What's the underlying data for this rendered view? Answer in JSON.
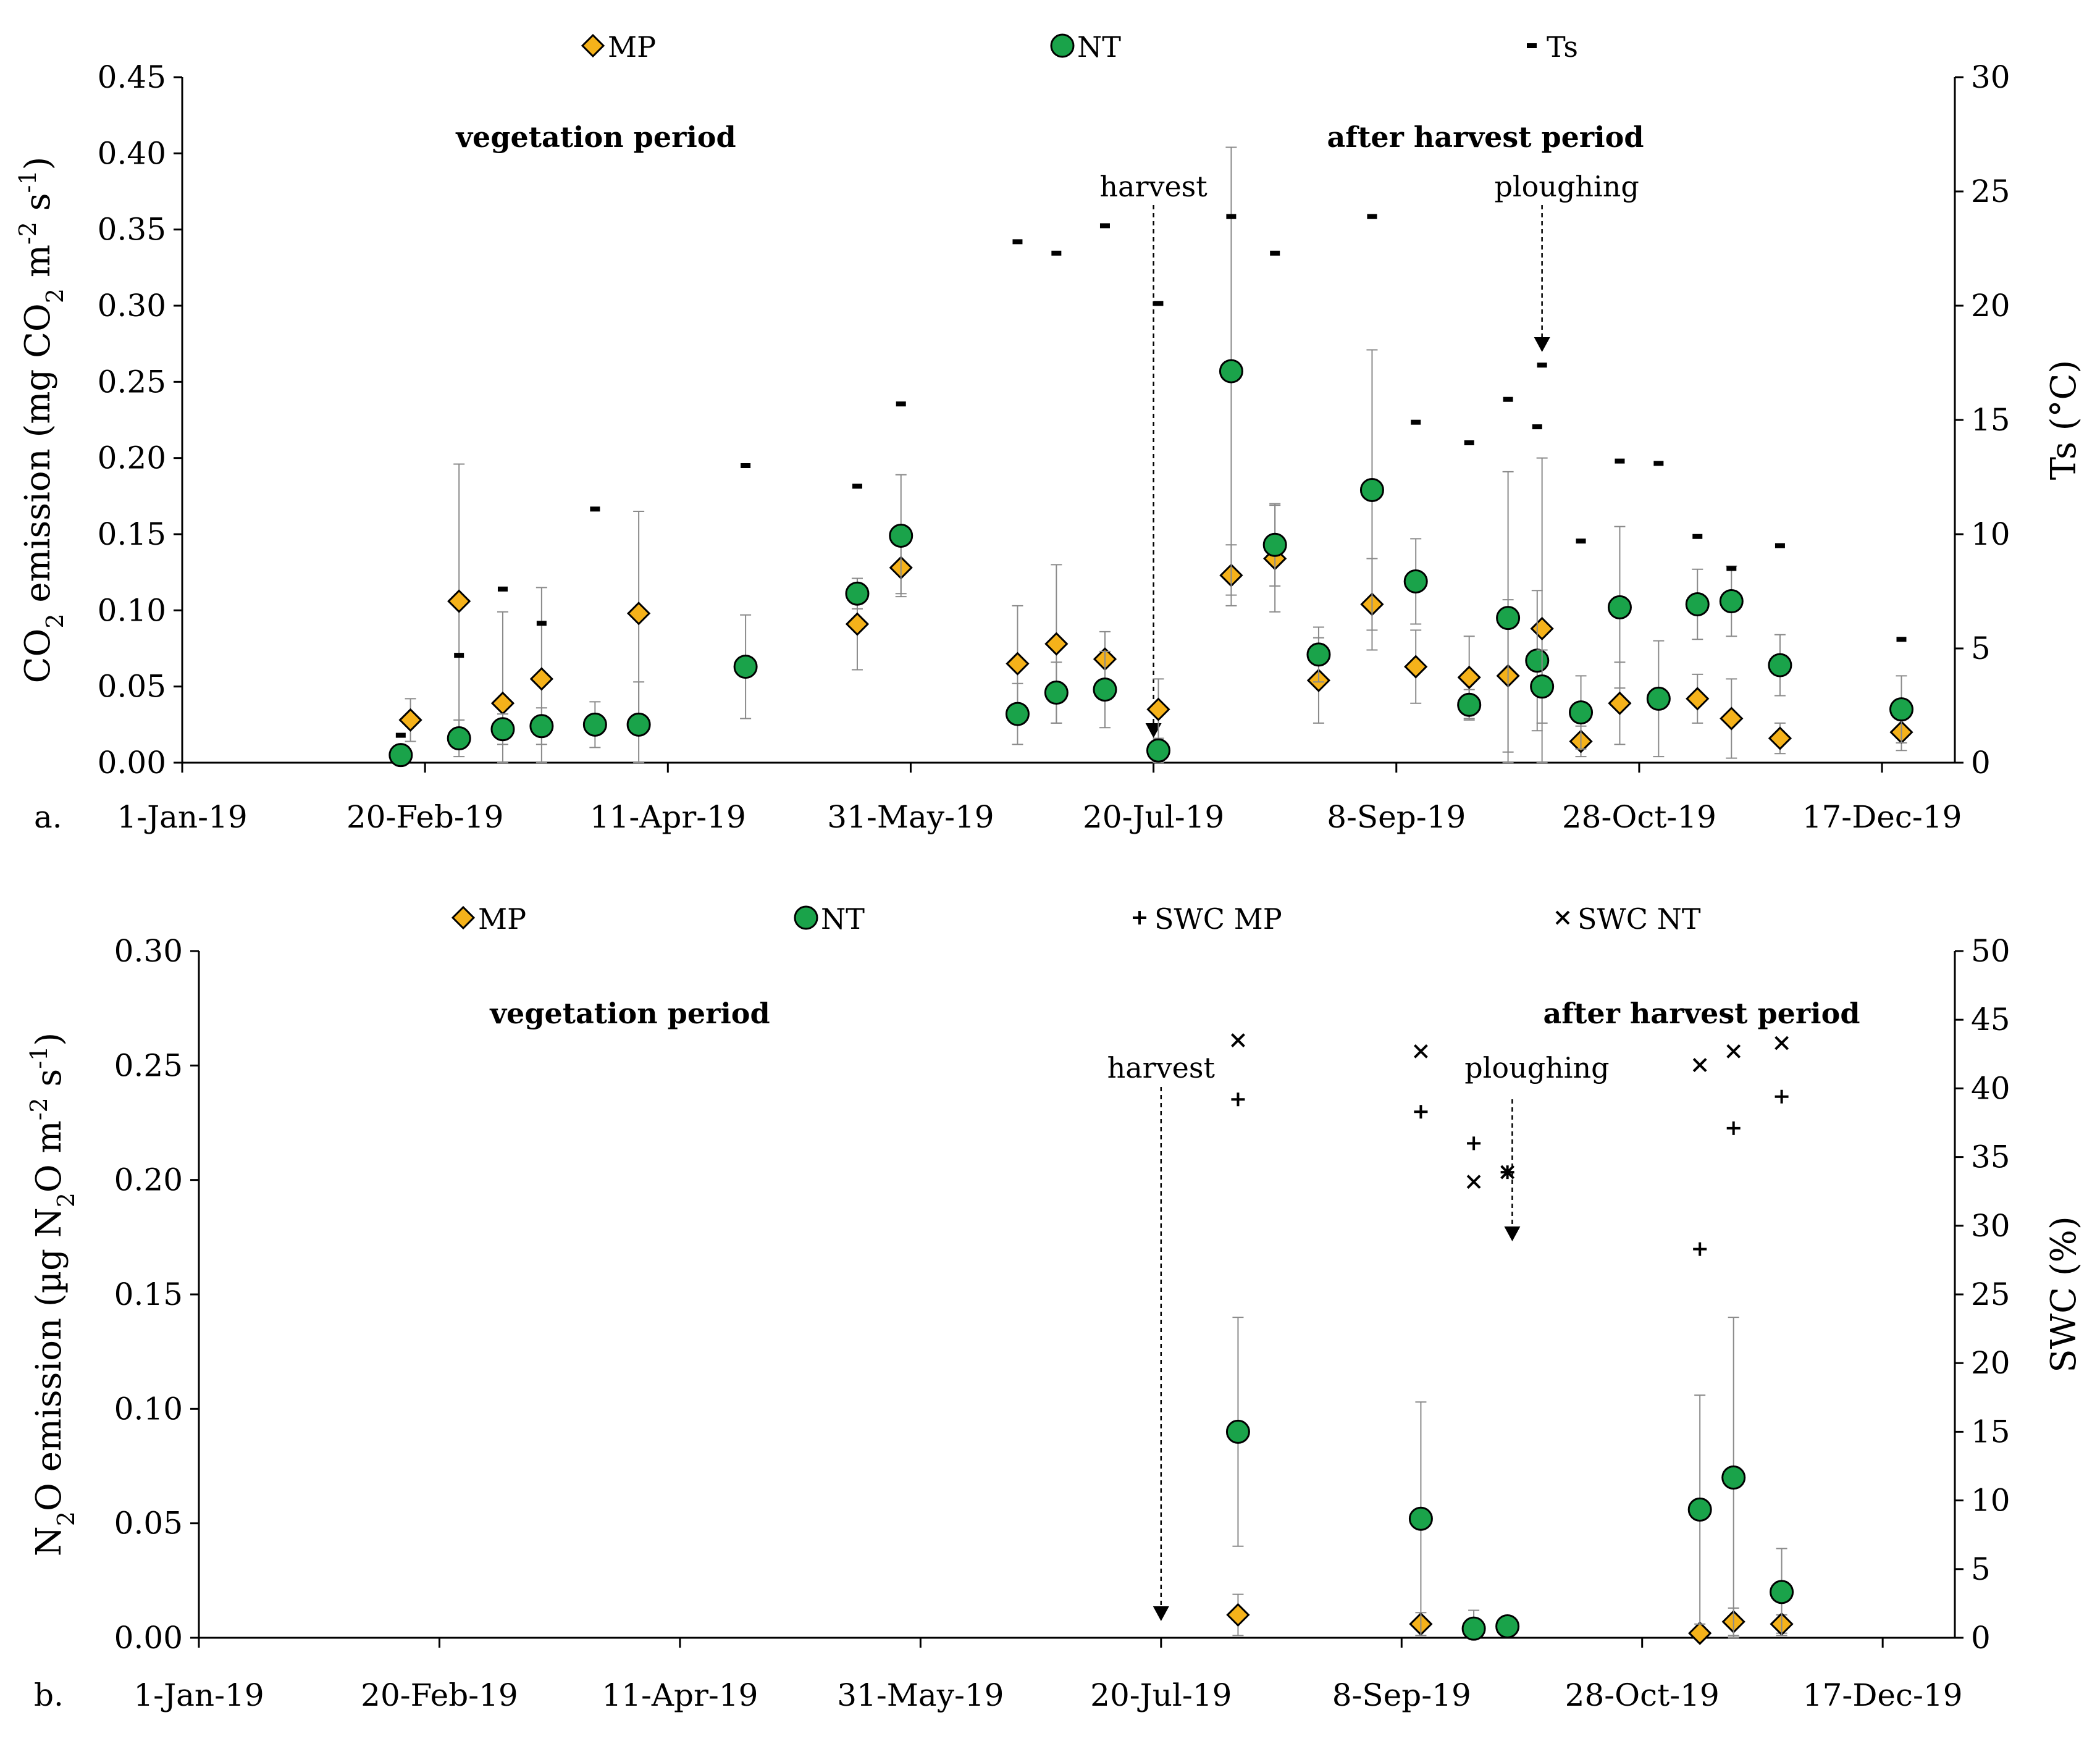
{
  "colors": {
    "MP": "#F5B21A",
    "NT": "#1AA34A",
    "marker_stroke": "#000000",
    "errorbar": "#8A8A8A"
  },
  "chart_data": [
    {
      "type": "scatter",
      "panel_label": "a.",
      "x_ticks": [
        "1-Jan-19",
        "20-Feb-19",
        "11-Apr-19",
        "31-May-19",
        "20-Jul-19",
        "8-Sep-19",
        "28-Oct-19",
        "17-Dec-19"
      ],
      "y_left": {
        "label_parts": [
          "CO",
          "2",
          " emission (mg CO",
          "2",
          " m",
          "-2",
          " s",
          "-1",
          ")"
        ],
        "label_style": [
          "n",
          "sub",
          "n",
          "sub",
          "n",
          "sup",
          "n",
          "sup",
          "n"
        ],
        "ticks": [
          "0.00",
          "0.05",
          "0.10",
          "0.15",
          "0.20",
          "0.25",
          "0.30",
          "0.35",
          "0.40",
          "0.45"
        ],
        "range": [
          0,
          0.45
        ]
      },
      "y_right": {
        "label": "Ts (°C)",
        "ticks": [
          "0",
          "5",
          "10",
          "15",
          "20",
          "25",
          "30"
        ],
        "range": [
          0,
          30
        ]
      },
      "legend": [
        {
          "name": "MP",
          "marker": "diamond"
        },
        {
          "name": "NT",
          "marker": "circle"
        },
        {
          "name": "Ts",
          "marker": "dash"
        }
      ],
      "annotations": {
        "vegetation": "vegetation period",
        "after_harvest": "after harvest period",
        "harvest": "harvest",
        "ploughing": "ploughing"
      },
      "harvest_date": "2019-07-20",
      "ploughing_date": "2019-10-08",
      "series": [
        {
          "name": "MP",
          "points": [
            {
              "x": "2019-02-17",
              "y": 0.028,
              "err": 0.014
            },
            {
              "x": "2019-02-27",
              "y": 0.106,
              "err": 0.09
            },
            {
              "x": "2019-03-08",
              "y": 0.039,
              "err": 0.06
            },
            {
              "x": "2019-03-16",
              "y": 0.055,
              "err": 0.06
            },
            {
              "x": "2019-04-05",
              "y": 0.098,
              "err": 0.067
            },
            {
              "x": "2019-05-20",
              "y": 0.091,
              "err": 0.03
            },
            {
              "x": "2019-05-29",
              "y": 0.128,
              "err": 0.017
            },
            {
              "x": "2019-06-22",
              "y": 0.065,
              "err": 0.038
            },
            {
              "x": "2019-06-30",
              "y": 0.078,
              "err": 0.052
            },
            {
              "x": "2019-07-10",
              "y": 0.068,
              "err": 0.018
            },
            {
              "x": "2019-07-21",
              "y": 0.035,
              "err": 0.02
            },
            {
              "x": "2019-08-05",
              "y": 0.123,
              "err": 0.02
            },
            {
              "x": "2019-08-14",
              "y": 0.134,
              "err": 0.035
            },
            {
              "x": "2019-08-23",
              "y": 0.054,
              "err": 0.028
            },
            {
              "x": "2019-09-03",
              "y": 0.104,
              "err": 0.03
            },
            {
              "x": "2019-09-12",
              "y": 0.063,
              "err": 0.024
            },
            {
              "x": "2019-09-23",
              "y": 0.056,
              "err": 0.027
            },
            {
              "x": "2019-10-01",
              "y": 0.057,
              "err": 0.05
            },
            {
              "x": "2019-10-08",
              "y": 0.088,
              "err": 0.112
            },
            {
              "x": "2019-10-16",
              "y": 0.014,
              "err": 0.01
            },
            {
              "x": "2019-10-24",
              "y": 0.039,
              "err": 0.027
            },
            {
              "x": "2019-11-09",
              "y": 0.042,
              "err": 0.016
            },
            {
              "x": "2019-11-16",
              "y": 0.029,
              "err": 0.026
            },
            {
              "x": "2019-11-26",
              "y": 0.016,
              "err": 0.01
            },
            {
              "x": "2019-12-21",
              "y": 0.02,
              "err": 0.012
            }
          ]
        },
        {
          "name": "NT",
          "points": [
            {
              "x": "2019-02-15",
              "y": 0.005,
              "err": 0.004
            },
            {
              "x": "2019-02-27",
              "y": 0.016,
              "err": 0.012
            },
            {
              "x": "2019-03-08",
              "y": 0.022,
              "err": 0.01
            },
            {
              "x": "2019-03-16",
              "y": 0.024,
              "err": 0.012
            },
            {
              "x": "2019-03-27",
              "y": 0.025,
              "err": 0.015
            },
            {
              "x": "2019-04-05",
              "y": 0.025,
              "err": 0.028
            },
            {
              "x": "2019-04-27",
              "y": 0.063,
              "err": 0.034
            },
            {
              "x": "2019-05-20",
              "y": 0.111,
              "err": 0.01
            },
            {
              "x": "2019-05-29",
              "y": 0.149,
              "err": 0.04
            },
            {
              "x": "2019-06-22",
              "y": 0.032,
              "err": 0.02
            },
            {
              "x": "2019-06-30",
              "y": 0.046,
              "err": 0.02
            },
            {
              "x": "2019-07-10",
              "y": 0.048,
              "err": 0.025
            },
            {
              "x": "2019-07-21",
              "y": 0.008,
              "err": 0.008
            },
            {
              "x": "2019-08-05",
              "y": 0.257,
              "err": 0.147
            },
            {
              "x": "2019-08-14",
              "y": 0.143,
              "err": 0.027
            },
            {
              "x": "2019-08-23",
              "y": 0.071,
              "err": 0.018
            },
            {
              "x": "2019-09-03",
              "y": 0.179,
              "err": 0.092
            },
            {
              "x": "2019-09-12",
              "y": 0.119,
              "err": 0.028
            },
            {
              "x": "2019-09-23",
              "y": 0.038,
              "err": 0.01
            },
            {
              "x": "2019-10-01",
              "y": 0.095,
              "err": 0.096
            },
            {
              "x": "2019-10-07",
              "y": 0.067,
              "err": 0.046
            },
            {
              "x": "2019-10-08",
              "y": 0.05,
              "err": 0.024
            },
            {
              "x": "2019-10-16",
              "y": 0.033,
              "err": 0.024
            },
            {
              "x": "2019-10-24",
              "y": 0.102,
              "err": 0.053
            },
            {
              "x": "2019-11-01",
              "y": 0.042,
              "err": 0.038
            },
            {
              "x": "2019-11-09",
              "y": 0.104,
              "err": 0.023
            },
            {
              "x": "2019-11-16",
              "y": 0.106,
              "err": 0.023
            },
            {
              "x": "2019-11-26",
              "y": 0.064,
              "err": 0.02
            },
            {
              "x": "2019-12-21",
              "y": 0.035,
              "err": 0.022
            }
          ]
        },
        {
          "name": "Ts",
          "points": [
            {
              "x": "2019-02-15",
              "y": 1.2
            },
            {
              "x": "2019-02-27",
              "y": 4.7
            },
            {
              "x": "2019-03-08",
              "y": 7.6
            },
            {
              "x": "2019-03-16",
              "y": 6.1
            },
            {
              "x": "2019-03-27",
              "y": 11.1
            },
            {
              "x": "2019-04-27",
              "y": 13.0
            },
            {
              "x": "2019-05-20",
              "y": 12.1
            },
            {
              "x": "2019-05-29",
              "y": 15.7
            },
            {
              "x": "2019-06-22",
              "y": 22.8
            },
            {
              "x": "2019-06-30",
              "y": 22.3
            },
            {
              "x": "2019-07-10",
              "y": 23.5
            },
            {
              "x": "2019-07-21",
              "y": 20.1
            },
            {
              "x": "2019-08-05",
              "y": 23.9
            },
            {
              "x": "2019-08-14",
              "y": 22.3
            },
            {
              "x": "2019-09-03",
              "y": 23.9
            },
            {
              "x": "2019-09-12",
              "y": 14.9
            },
            {
              "x": "2019-09-23",
              "y": 14.0
            },
            {
              "x": "2019-10-01",
              "y": 15.9
            },
            {
              "x": "2019-10-07",
              "y": 14.7
            },
            {
              "x": "2019-10-08",
              "y": 17.4
            },
            {
              "x": "2019-10-16",
              "y": 9.7
            },
            {
              "x": "2019-10-24",
              "y": 13.2
            },
            {
              "x": "2019-11-01",
              "y": 13.1
            },
            {
              "x": "2019-11-09",
              "y": 9.9
            },
            {
              "x": "2019-11-16",
              "y": 8.5
            },
            {
              "x": "2019-11-26",
              "y": 9.5
            },
            {
              "x": "2019-12-21",
              "y": 5.4
            }
          ]
        }
      ]
    },
    {
      "type": "scatter",
      "panel_label": "b.",
      "x_ticks": [
        "1-Jan-19",
        "20-Feb-19",
        "11-Apr-19",
        "31-May-19",
        "20-Jul-19",
        "8-Sep-19",
        "28-Oct-19",
        "17-Dec-19"
      ],
      "y_left": {
        "label_parts": [
          "N",
          "2",
          "O emission (µg N",
          "2",
          "O m",
          "-2",
          " s",
          "-1",
          ")"
        ],
        "label_style": [
          "n",
          "sub",
          "n",
          "sub",
          "n",
          "sup",
          "n",
          "sup",
          "n"
        ],
        "ticks": [
          "0.00",
          "0.05",
          "0.10",
          "0.15",
          "0.20",
          "0.25",
          "0.30"
        ],
        "range": [
          0,
          0.3
        ]
      },
      "y_right": {
        "label": "SWC (%)",
        "ticks": [
          "0",
          "5",
          "10",
          "15",
          "20",
          "25",
          "30",
          "35",
          "40",
          "45",
          "50"
        ],
        "range": [
          0,
          50
        ]
      },
      "legend": [
        {
          "name": "MP",
          "marker": "diamond"
        },
        {
          "name": "NT",
          "marker": "circle"
        },
        {
          "name": "SWC MP",
          "marker": "plus"
        },
        {
          "name": "SWC NT",
          "marker": "cross"
        }
      ],
      "annotations": {
        "vegetation": "vegetation period",
        "after_harvest": "after harvest period",
        "harvest": "harvest",
        "ploughing": "ploughing"
      },
      "harvest_date": "2019-07-20",
      "ploughing_date": "2019-10-01",
      "series": [
        {
          "name": "MP",
          "points": [
            {
              "x": "2019-08-05",
              "y": 0.01,
              "err": 0.009
            },
            {
              "x": "2019-09-12",
              "y": 0.006,
              "err": 0.005
            },
            {
              "x": "2019-11-09",
              "y": 0.002,
              "err": 0.002
            },
            {
              "x": "2019-11-16",
              "y": 0.007,
              "err": 0.006
            },
            {
              "x": "2019-11-26",
              "y": 0.006,
              "err": 0.004
            }
          ]
        },
        {
          "name": "NT",
          "points": [
            {
              "x": "2019-08-05",
              "y": 0.09,
              "err": 0.05
            },
            {
              "x": "2019-09-12",
              "y": 0.052,
              "err": 0.051
            },
            {
              "x": "2019-09-23",
              "y": 0.004,
              "err": 0.008
            },
            {
              "x": "2019-09-30",
              "y": 0.005,
              "err": 0.002
            },
            {
              "x": "2019-11-09",
              "y": 0.056,
              "err": 0.05
            },
            {
              "x": "2019-11-16",
              "y": 0.07,
              "err": 0.07
            },
            {
              "x": "2019-11-26",
              "y": 0.02,
              "err": 0.019
            }
          ]
        },
        {
          "name": "SWC MP",
          "points": [
            {
              "x": "2019-08-05",
              "y": 39.2
            },
            {
              "x": "2019-09-12",
              "y": 38.3
            },
            {
              "x": "2019-09-23",
              "y": 36.0
            },
            {
              "x": "2019-09-30",
              "y": 33.9
            },
            {
              "x": "2019-11-09",
              "y": 28.3
            },
            {
              "x": "2019-11-16",
              "y": 37.1
            },
            {
              "x": "2019-11-26",
              "y": 39.4
            }
          ]
        },
        {
          "name": "SWC NT",
          "points": [
            {
              "x": "2019-08-05",
              "y": 43.5
            },
            {
              "x": "2019-09-12",
              "y": 42.7
            },
            {
              "x": "2019-09-23",
              "y": 33.2
            },
            {
              "x": "2019-09-30",
              "y": 33.9
            },
            {
              "x": "2019-11-09",
              "y": 41.7
            },
            {
              "x": "2019-11-16",
              "y": 42.7
            },
            {
              "x": "2019-11-26",
              "y": 43.3
            }
          ]
        }
      ]
    }
  ]
}
